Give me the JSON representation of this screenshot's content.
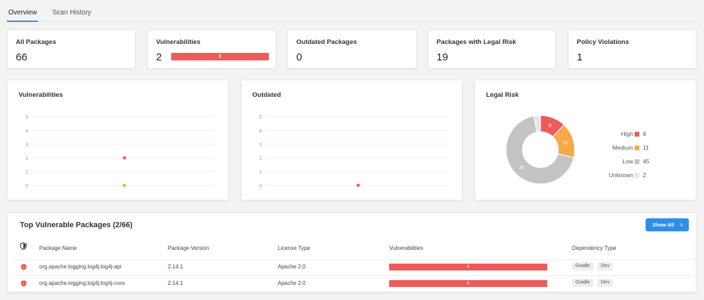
{
  "tabs": [
    {
      "label": "Overview",
      "active": true
    },
    {
      "label": "Scan History",
      "active": false
    }
  ],
  "stats": [
    {
      "title": "All Packages",
      "value": "66"
    },
    {
      "title": "Vulnerabilities",
      "value": "2",
      "bar_label": "2"
    },
    {
      "title": "Outdated Packages",
      "value": "0"
    },
    {
      "title": "Packages with Legal Risk",
      "value": "19"
    },
    {
      "title": "Policy Violations",
      "value": "1"
    }
  ],
  "colors": {
    "high": "#ef5b5b",
    "medium": "#f7a94a",
    "low": "#c4c4c4",
    "unknown": "#e6e6e6",
    "accent": "#2f8fe8"
  },
  "chart_data": [
    {
      "type": "scatter",
      "title": "Vulnerabilities",
      "y_ticks": [
        "0",
        "1",
        "2",
        "3",
        "4",
        "5"
      ],
      "ylim": [
        0,
        5
      ],
      "series": [
        {
          "values": [
            2
          ],
          "color": "#ef5b5b"
        },
        {
          "values": [
            0
          ],
          "color": "#f7a94a"
        }
      ]
    },
    {
      "type": "scatter",
      "title": "Outdated",
      "y_ticks": [
        "0",
        "1",
        "2",
        "3",
        "4",
        "5"
      ],
      "ylim": [
        0,
        5
      ],
      "series": [
        {
          "values": [
            0
          ],
          "color": "#ef5b5b"
        }
      ]
    },
    {
      "type": "pie",
      "title": "Legal Risk",
      "donut": true,
      "slices": [
        {
          "label": "High",
          "value": 8,
          "color": "#ef5b5b"
        },
        {
          "label": "Medium",
          "value": 11,
          "color": "#f7a94a"
        },
        {
          "label": "Low",
          "value": 45,
          "color": "#c4c4c4"
        },
        {
          "label": "Unknown",
          "value": 2,
          "color": "#e6e6e6"
        }
      ],
      "legend_placement": "right"
    }
  ],
  "table": {
    "title": "Top Vulnerable Packages (2/66)",
    "show_all_label": "Show All",
    "columns": [
      "Package Name",
      "Package Version",
      "License Type",
      "Vulnerabilities",
      "Dependency Type"
    ],
    "rows": [
      {
        "name": "org.apache.logging.log4j:log4j-api",
        "version": "2.14.1",
        "license": "Apache 2.0",
        "vulnerabilities": "1",
        "tags": [
          "Gradle",
          "Dev"
        ]
      },
      {
        "name": "org.apache.logging.log4j:log4j-core",
        "version": "2.14.1",
        "license": "Apache 2.0",
        "vulnerabilities": "1",
        "tags": [
          "Gradle",
          "Dev"
        ]
      }
    ]
  }
}
